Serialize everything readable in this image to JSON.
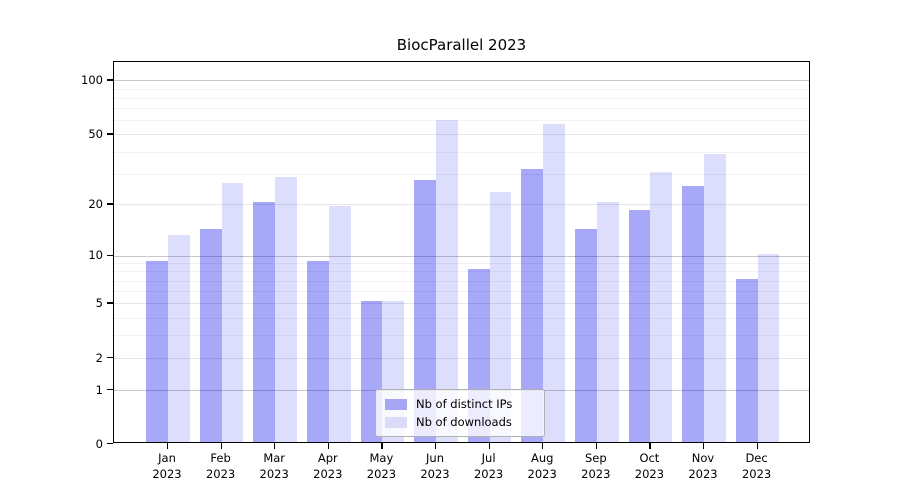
{
  "figure": {
    "background": "#ffffff"
  },
  "chart_data": {
    "type": "bar",
    "title": "BiocParallel 2023",
    "categories": [
      "Jan 2023",
      "Feb 2023",
      "Mar 2023",
      "Apr 2023",
      "May 2023",
      "Jun 2023",
      "Jul 2023",
      "Aug 2023",
      "Sep 2023",
      "Oct 2023",
      "Nov 2023",
      "Dec 2023"
    ],
    "x_axis": {
      "months": [
        "Jan",
        "Feb",
        "Mar",
        "Apr",
        "May",
        "Jun",
        "Jul",
        "Aug",
        "Sep",
        "Oct",
        "Nov",
        "Dec"
      ],
      "year": "2023"
    },
    "series": [
      {
        "name": "Nb of distinct IPs",
        "color": "rgba(0,0,235,0.34)",
        "legend_swatch": "#a6a6f4",
        "values": [
          9,
          14,
          20,
          9,
          5,
          27,
          8,
          31,
          14,
          18,
          25,
          7
        ]
      },
      {
        "name": "Nb of downloads",
        "color": "rgba(0,0,235,0.132)",
        "legend_swatch": "#dcdcf8",
        "values": [
          13,
          26,
          28,
          19,
          5,
          59,
          23,
          56,
          20,
          30,
          38,
          10
        ]
      }
    ],
    "y_scale": "log1p",
    "ylim": [
      0,
      115
    ],
    "y_ticks": [
      0,
      1,
      2,
      5,
      10,
      20,
      50,
      100
    ],
    "gridlines": {
      "major": [
        1,
        10,
        100
      ],
      "mid": [
        2,
        5,
        20,
        50
      ],
      "minor": [
        3,
        4,
        6,
        7,
        8,
        9,
        30,
        40,
        60,
        70,
        80,
        90
      ],
      "major_color": "#c8c8c8",
      "mid_color": "#e6e6e6",
      "minor_color": "#f2f2f2"
    },
    "legend_position": "bottom-center",
    "axis_color": "#000000"
  }
}
